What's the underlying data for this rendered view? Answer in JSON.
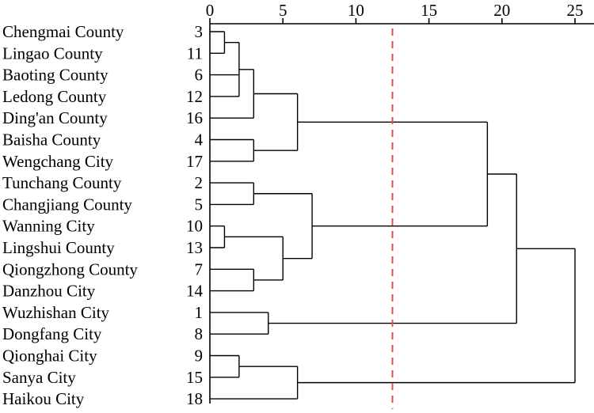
{
  "chart_data": {
    "type": "dendrogram",
    "x_axis": {
      "ticks": [
        0,
        5,
        10,
        15,
        20,
        25
      ],
      "range": [
        0,
        25
      ],
      "position": "top"
    },
    "cut_line": {
      "value": 12.5,
      "color": "#d9534f",
      "style": "dashed"
    },
    "leaves": [
      {
        "name": "Chengmai County",
        "id": "3"
      },
      {
        "name": "Lingao County",
        "id": "11"
      },
      {
        "name": "Baoting County",
        "id": "6"
      },
      {
        "name": "Ledong County",
        "id": "12"
      },
      {
        "name": "Ding'an County",
        "id": "16"
      },
      {
        "name": "Baisha County",
        "id": "4"
      },
      {
        "name": "Wengchang City",
        "id": "17"
      },
      {
        "name": "Tunchang County",
        "id": "2"
      },
      {
        "name": "Changjiang County",
        "id": "5"
      },
      {
        "name": "Wanning City",
        "id": "10"
      },
      {
        "name": "Lingshui County",
        "id": "13"
      },
      {
        "name": "Qiongzhong County",
        "id": "7"
      },
      {
        "name": "Danzhou City",
        "id": "14"
      },
      {
        "name": "Wuzhishan City",
        "id": "1"
      },
      {
        "name": "Dongfang City",
        "id": "8"
      },
      {
        "name": "Qionghai City",
        "id": "9"
      },
      {
        "name": "Sanya City",
        "id": "15"
      },
      {
        "name": "Haikou City",
        "id": "18"
      }
    ],
    "merges": [
      {
        "id": "A",
        "children": [
          0,
          1
        ],
        "height": 1
      },
      {
        "id": "B",
        "children": [
          "A",
          2,
          3
        ],
        "height": 2
      },
      {
        "id": "C",
        "children": [
          "B",
          4
        ],
        "height": 3
      },
      {
        "id": "D",
        "children": [
          5,
          6
        ],
        "height": 3
      },
      {
        "id": "E",
        "children": [
          "C",
          "D"
        ],
        "height": 6
      },
      {
        "id": "F",
        "children": [
          7,
          8
        ],
        "height": 3
      },
      {
        "id": "G",
        "children": [
          9,
          10
        ],
        "height": 1
      },
      {
        "id": "H",
        "children": [
          11,
          12
        ],
        "height": 3
      },
      {
        "id": "I",
        "children": [
          "G",
          "H"
        ],
        "height": 5
      },
      {
        "id": "J",
        "children": [
          "F",
          "I"
        ],
        "height": 7
      },
      {
        "id": "K",
        "children": [
          "E",
          "J"
        ],
        "height": 19
      },
      {
        "id": "L",
        "children": [
          13,
          14
        ],
        "height": 4
      },
      {
        "id": "M",
        "children": [
          "K",
          "L"
        ],
        "height": 21
      },
      {
        "id": "N",
        "children": [
          15,
          16
        ],
        "height": 2
      },
      {
        "id": "O",
        "children": [
          "N",
          17
        ],
        "height": 6
      },
      {
        "id": "P",
        "children": [
          "M",
          "O"
        ],
        "height": 25
      }
    ]
  }
}
